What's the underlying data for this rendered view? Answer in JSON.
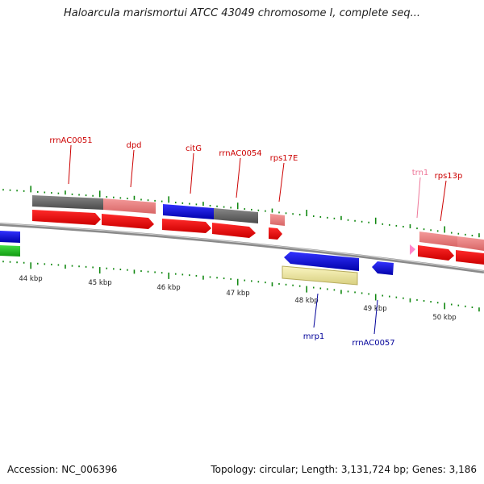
{
  "header": {
    "title": "Haloarcula marismortui ATCC 43049 chromosome I, complete seq..."
  },
  "footer": {
    "accession": "Accession: NC_006396",
    "summary": "Topology: circular; Length: 3,131,724 bp; Genes: 3,186"
  },
  "colors": {
    "label_red": "#cc0000",
    "label_blue": "#000099",
    "label_pink": "#ee7799",
    "feature_red": "#ff0000",
    "feature_blue": "#0000ee",
    "feature_grey": "#666666",
    "feature_pink": "#ee7777",
    "feature_green": "#22bb22",
    "feature_yellow": "#f5ee9e",
    "tick_green": "#118811",
    "backbone": "#888888"
  },
  "scale": {
    "labels": [
      "44 kbp",
      "45 kbp",
      "46 kbp",
      "47 kbp",
      "48 kbp",
      "49 kbp",
      "50 kbp"
    ]
  },
  "genes": {
    "forward": [
      "rrnAC0051",
      "dpd",
      "citG",
      "rrnAC0054",
      "rps17E",
      "trn1",
      "rps13p"
    ],
    "reverse": [
      "mrp1",
      "rrnAC0057"
    ]
  }
}
